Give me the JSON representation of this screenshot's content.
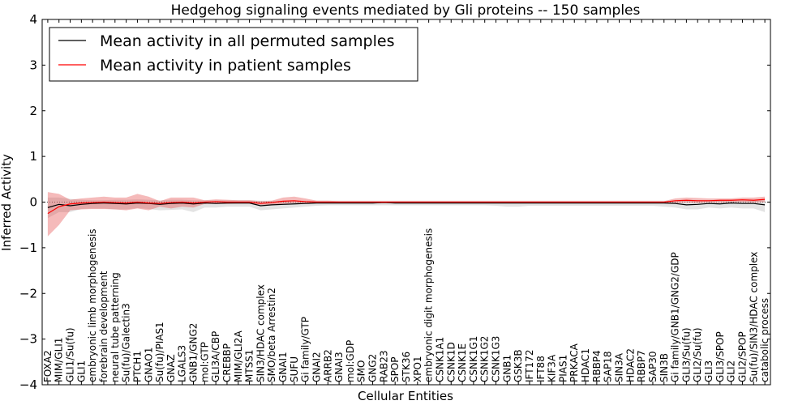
{
  "chart_data": {
    "type": "line",
    "title": "Hedgehog signaling events mediated by Gli proteins -- 150 samples",
    "xlabel": "Cellular Entities",
    "ylabel": "Inferred Activity",
    "ylim": [
      -4,
      4
    ],
    "yticks": [
      4,
      3,
      2,
      1,
      0,
      -1,
      -2,
      -3,
      -4
    ],
    "ytick_labels": [
      "4",
      "3",
      "2",
      "1",
      "0",
      "−1",
      "−2",
      "−3",
      "−4"
    ],
    "legend_position": "top-left",
    "categories": [
      "FOXA2",
      "MIM/GLI1",
      "GLI1/Su(fu)",
      "GLI1",
      "embryonic limb morphogenesis",
      "forebrain development",
      "neural tube patterning",
      "Su(fu)/Galectin3",
      "PTCH1",
      "GNAO1",
      "Su(fu)/PIAS1",
      "GNAZ",
      "LGALS3",
      "GNB1/GNG2",
      "mol:GTP",
      "GLI3A/CBP",
      "CREBBP",
      "MIM/GLI2A",
      "MTSS1",
      "SIN3/HDAC complex",
      "SMO/beta Arrestin2",
      "GNAI1",
      "SUFU",
      "Gi family/GTP",
      "GNAI2",
      "ARRB2",
      "GNAI3",
      "mol:GDP",
      "SMO",
      "GNG2",
      "RAB23",
      "SPOP",
      "STK36",
      "XPO1",
      "embryonic digit morphogenesis",
      "CSNK1A1",
      "CSNK1D",
      "CSNK1E",
      "CSNK1G1",
      "CSNK1G2",
      "CSNK1G3",
      "GNB1",
      "GSK3B",
      "IFT172",
      "IFT88",
      "KIF3A",
      "PIAS1",
      "PRKACA",
      "HDAC1",
      "RBBP4",
      "SAP18",
      "SIN3A",
      "HDAC2",
      "RBBP7",
      "SAP30",
      "SIN3B",
      "Gi family/GNB1/GNG2/GDP",
      "GLI3/Su(fu)",
      "GLI2/Su(fu)",
      "GLI3",
      "GLI3/SPOP",
      "GLI2",
      "GLI2/SPOP",
      "Su(fu)/SIN3/HDAC complex",
      "catabolic process"
    ],
    "series": [
      {
        "name": "Mean activity in all permuted samples",
        "color": "#000000",
        "values": [
          -0.12,
          -0.05,
          -0.08,
          -0.05,
          -0.03,
          -0.02,
          -0.03,
          -0.04,
          -0.02,
          -0.03,
          -0.05,
          -0.03,
          -0.02,
          -0.04,
          -0.02,
          -0.03,
          -0.02,
          -0.02,
          -0.02,
          -0.08,
          -0.06,
          -0.05,
          -0.04,
          -0.03,
          -0.02,
          -0.02,
          -0.02,
          -0.02,
          -0.02,
          -0.02,
          -0.01,
          -0.02,
          -0.02,
          -0.02,
          -0.02,
          -0.02,
          -0.02,
          -0.02,
          -0.02,
          -0.02,
          -0.02,
          -0.02,
          -0.02,
          -0.02,
          -0.02,
          -0.02,
          -0.02,
          -0.02,
          -0.02,
          -0.02,
          -0.02,
          -0.02,
          -0.02,
          -0.02,
          -0.02,
          -0.02,
          -0.03,
          -0.06,
          -0.05,
          -0.03,
          -0.04,
          -0.02,
          -0.03,
          -0.03,
          -0.06
        ],
        "band_upper": [
          0.1,
          0.1,
          0.07,
          0.05,
          0.04,
          0.04,
          0.05,
          0.05,
          0.06,
          0.05,
          0.04,
          0.05,
          0.05,
          0.04,
          0.04,
          0.04,
          0.04,
          0.04,
          0.04,
          0.03,
          0.03,
          0.03,
          0.03,
          0.03,
          0.03,
          0.03,
          0.03,
          0.03,
          0.03,
          0.03,
          0.03,
          0.03,
          0.03,
          0.03,
          0.03,
          0.03,
          0.03,
          0.03,
          0.03,
          0.03,
          0.03,
          0.03,
          0.03,
          0.03,
          0.03,
          0.03,
          0.03,
          0.03,
          0.03,
          0.03,
          0.03,
          0.03,
          0.03,
          0.03,
          0.03,
          0.03,
          0.03,
          0.03,
          0.04,
          0.04,
          0.04,
          0.05,
          0.05,
          0.05,
          0.04
        ],
        "band_lower": [
          -0.35,
          -0.22,
          -0.22,
          -0.15,
          -0.14,
          -0.14,
          -0.16,
          -0.16,
          -0.13,
          -0.15,
          -0.18,
          -0.17,
          -0.16,
          -0.22,
          -0.12,
          -0.12,
          -0.1,
          -0.1,
          -0.1,
          -0.18,
          -0.16,
          -0.14,
          -0.12,
          -0.1,
          -0.08,
          -0.07,
          -0.07,
          -0.07,
          -0.07,
          -0.07,
          -0.07,
          -0.07,
          -0.07,
          -0.07,
          -0.07,
          -0.07,
          -0.07,
          -0.07,
          -0.07,
          -0.07,
          -0.08,
          -0.1,
          -0.1,
          -0.08,
          -0.08,
          -0.08,
          -0.08,
          -0.08,
          -0.08,
          -0.08,
          -0.08,
          -0.08,
          -0.08,
          -0.08,
          -0.08,
          -0.1,
          -0.12,
          -0.16,
          -0.16,
          -0.12,
          -0.14,
          -0.12,
          -0.14,
          -0.14,
          -0.22
        ]
      },
      {
        "name": "Mean activity in patient samples",
        "color": "#ff0000",
        "values": [
          -0.25,
          -0.1,
          -0.04,
          -0.02,
          -0.01,
          0.0,
          -0.01,
          -0.02,
          0.0,
          -0.02,
          -0.03,
          -0.01,
          0.0,
          -0.02,
          0.0,
          0.01,
          0.0,
          0.0,
          0.0,
          -0.03,
          -0.01,
          0.02,
          0.03,
          0.01,
          0.0,
          0.0,
          0.0,
          0.0,
          0.0,
          0.0,
          0.0,
          0.0,
          0.0,
          0.0,
          0.0,
          0.0,
          0.0,
          0.0,
          0.0,
          0.0,
          0.0,
          0.0,
          0.0,
          0.0,
          0.0,
          0.0,
          0.0,
          0.0,
          0.0,
          0.0,
          0.0,
          0.0,
          0.0,
          0.0,
          0.0,
          0.0,
          0.03,
          0.04,
          0.03,
          0.03,
          0.04,
          0.04,
          0.05,
          0.04,
          0.06
        ],
        "band_upper": [
          0.22,
          0.18,
          0.05,
          0.08,
          0.1,
          0.12,
          0.1,
          0.1,
          0.18,
          0.12,
          0.02,
          0.1,
          0.1,
          0.1,
          0.04,
          0.06,
          0.05,
          0.04,
          0.04,
          0.02,
          0.03,
          0.1,
          0.12,
          0.08,
          0.03,
          0.03,
          0.02,
          0.02,
          0.02,
          0.02,
          0.02,
          0.02,
          0.02,
          0.02,
          0.02,
          0.02,
          0.02,
          0.02,
          0.02,
          0.02,
          0.02,
          0.02,
          0.02,
          0.02,
          0.02,
          0.02,
          0.02,
          0.02,
          0.02,
          0.02,
          0.02,
          0.02,
          0.02,
          0.02,
          0.02,
          0.02,
          0.08,
          0.1,
          0.09,
          0.08,
          0.08,
          0.08,
          0.1,
          0.1,
          0.12
        ],
        "band_lower": [
          -0.75,
          -0.5,
          -0.18,
          -0.16,
          -0.15,
          -0.15,
          -0.16,
          -0.18,
          -0.14,
          -0.18,
          -0.1,
          -0.14,
          -0.1,
          -0.12,
          -0.04,
          -0.04,
          -0.04,
          -0.03,
          -0.03,
          -0.06,
          -0.05,
          -0.04,
          -0.02,
          -0.03,
          -0.01,
          -0.01,
          -0.01,
          -0.01,
          -0.01,
          -0.01,
          -0.01,
          -0.01,
          -0.01,
          -0.01,
          -0.01,
          -0.01,
          -0.01,
          -0.01,
          -0.01,
          -0.01,
          -0.01,
          -0.01,
          -0.01,
          -0.01,
          -0.01,
          -0.01,
          -0.01,
          -0.01,
          -0.01,
          -0.01,
          -0.01,
          -0.01,
          -0.01,
          -0.01,
          -0.01,
          -0.02,
          -0.02,
          -0.01,
          -0.02,
          -0.01,
          -0.01,
          0.0,
          0.0,
          -0.01,
          0.0
        ]
      }
    ]
  }
}
